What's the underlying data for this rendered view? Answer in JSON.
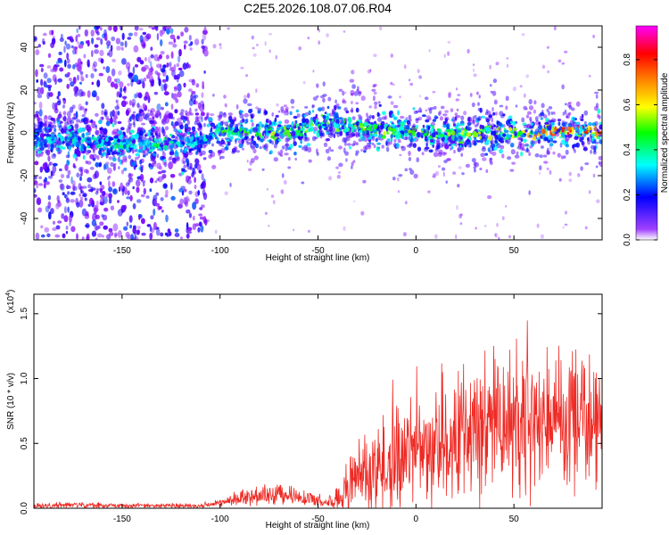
{
  "title": "C2E5.2026.108.07.06.R04",
  "colors": {
    "snr_line": "#ee2a24",
    "axis": "#000000",
    "background": "#ffffff"
  },
  "colorbar": {
    "label": "Normalized spectral amplitude",
    "ticks": [
      "0.0",
      "0.2",
      "0.4",
      "0.6",
      "0.8"
    ],
    "tick_values": [
      0.0,
      0.2,
      0.4,
      0.6,
      0.8
    ],
    "range": [
      0,
      0.95
    ],
    "colormap": [
      "#ffffff",
      "#8000ff",
      "#0000ff",
      "#00ffff",
      "#00ff00",
      "#ffff00",
      "#ff8000",
      "#ff0000",
      "#ff00ff"
    ]
  },
  "chart_data": [
    {
      "type": "heatmap",
      "xlabel": "Height of straight line (km)",
      "ylabel": "Frequency (Hz)",
      "xlim": [
        -195,
        95
      ],
      "ylim": [
        -50,
        50
      ],
      "xticks": [
        "-150",
        "-100",
        "-50",
        "0",
        "50"
      ],
      "xtick_values": [
        -150,
        -100,
        -50,
        0,
        50
      ],
      "yticks": [
        "-40",
        "-20",
        "0",
        "20",
        "40"
      ],
      "ytick_values": [
        -40,
        -20,
        0,
        20,
        40
      ],
      "noise_region_x": [
        -195,
        -107
      ],
      "ridge": {
        "x": [
          -195,
          -170,
          -150,
          -130,
          -110,
          -100,
          -80,
          -60,
          -50,
          -45,
          -35,
          -20,
          0,
          20,
          40,
          55,
          70,
          95
        ],
        "frequency": [
          -3,
          -4,
          -5,
          -6,
          -4,
          1,
          0,
          1,
          4,
          6,
          3,
          2,
          0,
          -1,
          1,
          -1,
          1,
          0
        ],
        "peak_amplitude": [
          0.35,
          0.4,
          0.42,
          0.45,
          0.3,
          0.5,
          0.55,
          0.55,
          0.5,
          0.5,
          0.5,
          0.55,
          0.5,
          0.55,
          0.55,
          0.6,
          0.82,
          0.85
        ]
      }
    },
    {
      "type": "line",
      "xlabel": "Height of straight line (km)",
      "ylabel": "SNR (10 * v/v)",
      "y_multiplier": "(x10",
      "y_multiplier_exp": "4",
      "y_multiplier_close": ")",
      "xlim": [
        -195,
        95
      ],
      "ylim": [
        0,
        1.65
      ],
      "xticks": [
        "-150",
        "-100",
        "-50",
        "0",
        "50"
      ],
      "xtick_values": [
        -150,
        -100,
        -50,
        0,
        50
      ],
      "yticks": [
        "0.0",
        "0.5",
        "1.0",
        "1.5"
      ],
      "ytick_values": [
        0,
        0.5,
        1.0,
        1.5
      ],
      "series": [
        {
          "x": [
            -195,
            -175,
            -150,
            -125,
            -110,
            -100,
            -90,
            -80,
            -70,
            -60,
            -50,
            -45,
            -40,
            -35,
            -30,
            -20,
            -10,
            0,
            10,
            20,
            30,
            40,
            50,
            60,
            70,
            80,
            95
          ],
          "mean": [
            0.02,
            0.025,
            0.02,
            0.02,
            0.02,
            0.04,
            0.08,
            0.1,
            0.11,
            0.1,
            0.06,
            0.04,
            0.08,
            0.15,
            0.25,
            0.3,
            0.38,
            0.42,
            0.5,
            0.58,
            0.62,
            0.66,
            0.7,
            0.72,
            0.74,
            0.72,
            0.7
          ],
          "spread": [
            0.02,
            0.025,
            0.02,
            0.02,
            0.02,
            0.03,
            0.06,
            0.08,
            0.09,
            0.08,
            0.05,
            0.05,
            0.1,
            0.2,
            0.3,
            0.38,
            0.42,
            0.45,
            0.5,
            0.55,
            0.58,
            0.6,
            0.6,
            0.62,
            0.6,
            0.58,
            0.5
          ]
        }
      ]
    }
  ]
}
